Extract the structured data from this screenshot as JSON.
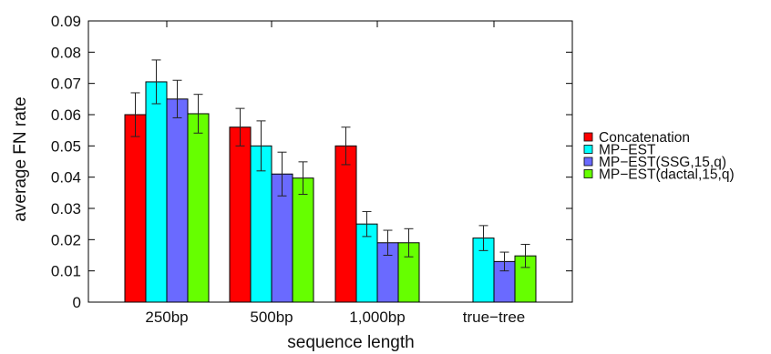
{
  "chart_data": {
    "type": "bar",
    "categories": [
      "250bp",
      "500bp",
      "1,000bp",
      "true−tree"
    ],
    "series": [
      {
        "name": "Concatenation",
        "color": "#ff0000",
        "values": [
          0.06,
          0.056,
          0.05,
          null
        ],
        "errors": [
          0.007,
          0.006,
          0.006,
          null
        ]
      },
      {
        "name": "MP−EST",
        "color": "#00ffff",
        "values": [
          0.0705,
          0.05,
          0.025,
          0.0205
        ],
        "errors": [
          0.007,
          0.008,
          0.004,
          0.004
        ]
      },
      {
        "name": "MP−EST(SSG,15,q)",
        "color": "#6a6aff",
        "values": [
          0.065,
          0.041,
          0.019,
          0.013
        ],
        "errors": [
          0.006,
          0.007,
          0.004,
          0.003
        ]
      },
      {
        "name": "MP−EST(dactal,15,q)",
        "color": "#66ff00",
        "values": [
          0.0603,
          0.0397,
          0.019,
          0.0148
        ],
        "errors": [
          0.0062,
          0.0052,
          0.0045,
          0.0037
        ]
      }
    ],
    "xlabel": "sequence length",
    "ylabel": "average FN rate",
    "ylim": [
      0,
      0.09
    ],
    "yticks": [
      "0",
      "0.01",
      "0.02",
      "0.03",
      "0.04",
      "0.05",
      "0.06",
      "0.07",
      "0.08",
      "0.09"
    ],
    "grid": false,
    "legend_position": "right"
  }
}
